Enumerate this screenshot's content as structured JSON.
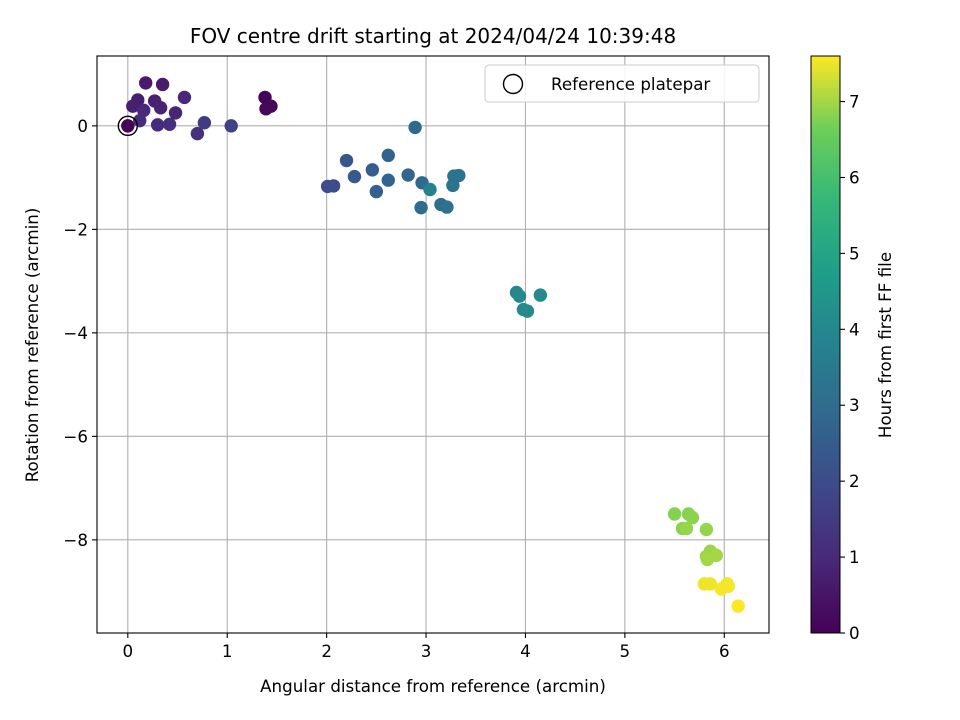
{
  "chart_data": {
    "type": "scatter",
    "title": "FOV centre drift starting at 2024/04/24 10:39:48",
    "xlabel": "Angular distance from reference (arcmin)",
    "ylabel": "Rotation from reference (arcmin)",
    "xlim": [
      -0.31,
      6.45
    ],
    "ylim": [
      -9.8,
      1.35
    ],
    "xticks": [
      0,
      1,
      2,
      3,
      4,
      5,
      6
    ],
    "yticks": [
      0,
      -2,
      -4,
      -6,
      -8
    ],
    "grid": true,
    "legend": {
      "position": "top-right",
      "label": "Reference platepar",
      "marker": "open-circle"
    },
    "reference_point": {
      "x": 0,
      "y": 0
    },
    "colormap": "viridis",
    "colorbar": {
      "label": "Hours from first FF file",
      "range": [
        0,
        7.6
      ],
      "ticks": [
        0,
        1,
        2,
        3,
        4,
        5,
        6,
        7
      ]
    },
    "points": [
      {
        "x": 0.0,
        "y": 0.0,
        "c": 0.05
      },
      {
        "x": 1.38,
        "y": 0.55,
        "c": 0.1
      },
      {
        "x": 1.44,
        "y": 0.38,
        "c": 0.15
      },
      {
        "x": 1.39,
        "y": 0.33,
        "c": 0.2
      },
      {
        "x": 0.18,
        "y": 0.83,
        "c": 0.6
      },
      {
        "x": 0.35,
        "y": 0.8,
        "c": 0.65
      },
      {
        "x": 0.1,
        "y": 0.5,
        "c": 0.7
      },
      {
        "x": 0.05,
        "y": 0.38,
        "c": 0.75
      },
      {
        "x": 0.27,
        "y": 0.48,
        "c": 0.8
      },
      {
        "x": 0.33,
        "y": 0.35,
        "c": 0.85
      },
      {
        "x": 0.48,
        "y": 0.25,
        "c": 0.9
      },
      {
        "x": 0.57,
        "y": 0.55,
        "c": 0.95
      },
      {
        "x": 0.16,
        "y": 0.3,
        "c": 1.0
      },
      {
        "x": 0.12,
        "y": 0.1,
        "c": 1.05
      },
      {
        "x": 0.3,
        "y": 0.02,
        "c": 1.1
      },
      {
        "x": 0.42,
        "y": 0.03,
        "c": 1.15
      },
      {
        "x": 0.7,
        "y": -0.15,
        "c": 1.2
      },
      {
        "x": 0.77,
        "y": 0.06,
        "c": 1.5
      },
      {
        "x": 1.04,
        "y": 0.0,
        "c": 1.7
      },
      {
        "x": 2.01,
        "y": -1.17,
        "c": 2.0
      },
      {
        "x": 2.07,
        "y": -1.16,
        "c": 2.05
      },
      {
        "x": 2.2,
        "y": -0.67,
        "c": 2.3
      },
      {
        "x": 2.28,
        "y": -0.98,
        "c": 2.4
      },
      {
        "x": 2.46,
        "y": -0.85,
        "c": 2.5
      },
      {
        "x": 2.5,
        "y": -1.27,
        "c": 2.6
      },
      {
        "x": 2.62,
        "y": -0.57,
        "c": 2.7
      },
      {
        "x": 2.62,
        "y": -1.05,
        "c": 2.75
      },
      {
        "x": 2.82,
        "y": -0.95,
        "c": 2.8
      },
      {
        "x": 2.89,
        "y": -0.03,
        "c": 2.9
      },
      {
        "x": 2.96,
        "y": -1.1,
        "c": 2.95
      },
      {
        "x": 2.95,
        "y": -1.58,
        "c": 3.0
      },
      {
        "x": 3.15,
        "y": -1.52,
        "c": 3.1
      },
      {
        "x": 3.21,
        "y": -1.57,
        "c": 3.15
      },
      {
        "x": 3.27,
        "y": -1.15,
        "c": 3.2
      },
      {
        "x": 3.28,
        "y": -0.97,
        "c": 3.25
      },
      {
        "x": 3.33,
        "y": -0.96,
        "c": 3.3
      },
      {
        "x": 3.04,
        "y": -1.23,
        "c": 3.85
      },
      {
        "x": 3.91,
        "y": -3.22,
        "c": 4.0
      },
      {
        "x": 3.94,
        "y": -3.29,
        "c": 4.02
      },
      {
        "x": 3.98,
        "y": -3.55,
        "c": 4.05
      },
      {
        "x": 4.02,
        "y": -3.58,
        "c": 4.08
      },
      {
        "x": 4.15,
        "y": -3.27,
        "c": 4.1
      },
      {
        "x": 5.5,
        "y": -7.5,
        "c": 6.8
      },
      {
        "x": 5.64,
        "y": -7.5,
        "c": 6.8
      },
      {
        "x": 5.68,
        "y": -7.57,
        "c": 6.85
      },
      {
        "x": 5.58,
        "y": -7.78,
        "c": 6.85
      },
      {
        "x": 5.62,
        "y": -7.78,
        "c": 6.9
      },
      {
        "x": 5.82,
        "y": -7.8,
        "c": 6.9
      },
      {
        "x": 5.82,
        "y": -8.32,
        "c": 6.95
      },
      {
        "x": 5.86,
        "y": -8.22,
        "c": 6.95
      },
      {
        "x": 5.83,
        "y": -8.38,
        "c": 7.0
      },
      {
        "x": 5.92,
        "y": -8.3,
        "c": 7.0
      },
      {
        "x": 5.8,
        "y": -8.85,
        "c": 7.5
      },
      {
        "x": 5.86,
        "y": -8.85,
        "c": 7.5
      },
      {
        "x": 5.97,
        "y": -8.95,
        "c": 7.55
      },
      {
        "x": 6.03,
        "y": -8.85,
        "c": 7.55
      },
      {
        "x": 6.04,
        "y": -8.9,
        "c": 7.55
      },
      {
        "x": 6.14,
        "y": -9.28,
        "c": 7.6
      }
    ]
  }
}
